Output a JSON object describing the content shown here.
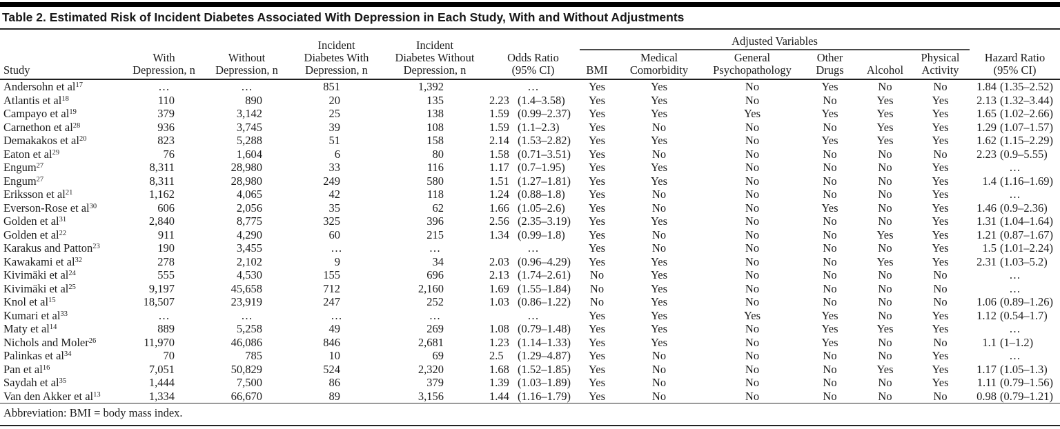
{
  "title": "Table 2. Estimated Risk of Incident Diabetes Associated With Depression in Each Study, With and Without Adjustments",
  "footnote": "Abbreviation: BMI = body mass index.",
  "table": {
    "headers": {
      "study": "Study",
      "with_depression": "With\nDepression, n",
      "without_depression": "Without\nDepression, n",
      "incident_with": "Incident\nDiabetes With\nDepression, n",
      "incident_without": "Incident\nDiabetes Without\nDepression, n",
      "odds_ratio": "Odds Ratio\n(95% CI)",
      "adjusted_variables": "Adjusted Variables",
      "adjusted_columns": [
        "BMI",
        "Medical\nComorbidity",
        "General\nPsychopathology",
        "Other\nDrugs",
        "Alcohol",
        "Physical\nActivity"
      ],
      "hazard_ratio": "Hazard Ratio\n(95% CI)"
    },
    "row_fields": [
      "study",
      "citation_ref",
      "with_depression_n",
      "without_depression_n",
      "incident_diabetes_with_n",
      "incident_diabetes_without_n",
      "odds_ratio_95ci",
      "adj_bmi",
      "adj_medical_comorbidity",
      "adj_general_psychopathology",
      "adj_other_drugs",
      "adj_alcohol",
      "adj_physical_activity",
      "hazard_ratio_95ci"
    ],
    "rows": [
      [
        "Andersohn et al",
        "17",
        "…",
        "…",
        "851",
        "1,392",
        "…",
        "Yes",
        "Yes",
        "No",
        "Yes",
        "No",
        "No",
        "1.84 (1.35–2.52)"
      ],
      [
        "Atlantis et al",
        "18",
        "110",
        "890",
        "20",
        "135",
        "2.23 (1.4–3.58)",
        "Yes",
        "Yes",
        "No",
        "No",
        "Yes",
        "Yes",
        "2.13 (1.32–3.44)"
      ],
      [
        "Campayo et al",
        "19",
        "379",
        "3,142",
        "25",
        "138",
        "1.59 (0.99–2.37)",
        "Yes",
        "Yes",
        "Yes",
        "Yes",
        "Yes",
        "Yes",
        "1.65 (1.02–2.66)"
      ],
      [
        "Carnethon et al",
        "28",
        "936",
        "3,745",
        "39",
        "108",
        "1.59 (1.1–2.3)",
        "Yes",
        "No",
        "No",
        "No",
        "Yes",
        "Yes",
        "1.29 (1.07–1.57)"
      ],
      [
        "Demakakos et al",
        "20",
        "823",
        "5,288",
        "51",
        "158",
        "2.14 (1.53–2.82)",
        "Yes",
        "Yes",
        "No",
        "Yes",
        "Yes",
        "Yes",
        "1.62 (1.15–2.29)"
      ],
      [
        "Eaton et al",
        "29",
        "76",
        "1,604",
        "6",
        "80",
        "1.58 (0.71–3.51)",
        "Yes",
        "No",
        "No",
        "No",
        "No",
        "No",
        "2.23 (0.9–5.55)"
      ],
      [
        "Engum",
        "27",
        "8,311",
        "28,980",
        "33",
        "116",
        "1.17 (0.7–1.95)",
        "Yes",
        "Yes",
        "No",
        "No",
        "No",
        "Yes",
        "…"
      ],
      [
        "Engum",
        "27",
        "8,311",
        "28,980",
        "249",
        "580",
        "1.51 (1.27–1.81)",
        "Yes",
        "Yes",
        "No",
        "No",
        "No",
        "Yes",
        "1.4 (1.16–1.69)"
      ],
      [
        "Eriksson et al",
        "21",
        "1,162",
        "4,065",
        "42",
        "118",
        "1.24 (0.88–1.8)",
        "Yes",
        "No",
        "No",
        "No",
        "No",
        "Yes",
        "…"
      ],
      [
        "Everson-Rose et al",
        "30",
        "606",
        "2,056",
        "35",
        "62",
        "1.66 (1.05–2.6)",
        "Yes",
        "No",
        "No",
        "Yes",
        "No",
        "Yes",
        "1.46 (0.9–2.36)"
      ],
      [
        "Golden et al",
        "31",
        "2,840",
        "8,775",
        "325",
        "396",
        "2.56 (2.35–3.19)",
        "Yes",
        "Yes",
        "No",
        "No",
        "No",
        "Yes",
        "1.31 (1.04–1.64)"
      ],
      [
        "Golden et al",
        "22",
        "911",
        "4,290",
        "60",
        "215",
        "1.34 (0.99–1.8)",
        "Yes",
        "No",
        "No",
        "No",
        "Yes",
        "Yes",
        "1.21 (0.87–1.67)"
      ],
      [
        "Karakus and Patton",
        "23",
        "190",
        "3,455",
        "…",
        "…",
        "…",
        "Yes",
        "No",
        "No",
        "No",
        "No",
        "Yes",
        "1.5 (1.01–2.24)"
      ],
      [
        "Kawakami et al",
        "32",
        "278",
        "2,102",
        "9",
        "34",
        "2.03 (0.96–4.29)",
        "Yes",
        "Yes",
        "No",
        "No",
        "Yes",
        "Yes",
        "2.31 (1.03–5.2)"
      ],
      [
        "Kivimäki et al",
        "24",
        "555",
        "4,530",
        "155",
        "696",
        "2.13 (1.74–2.61)",
        "No",
        "Yes",
        "No",
        "No",
        "No",
        "No",
        "…"
      ],
      [
        "Kivimäki et al",
        "25",
        "9,197",
        "45,658",
        "712",
        "2,160",
        "1.69 (1.55–1.84)",
        "No",
        "Yes",
        "No",
        "No",
        "No",
        "No",
        "…"
      ],
      [
        "Knol et al",
        "15",
        "18,507",
        "23,919",
        "247",
        "252",
        "1.03 (0.86–1.22)",
        "No",
        "Yes",
        "No",
        "No",
        "No",
        "No",
        "1.06 (0.89–1.26)"
      ],
      [
        "Kumari et al",
        "33",
        "…",
        "…",
        "…",
        "…",
        "…",
        "Yes",
        "Yes",
        "Yes",
        "Yes",
        "No",
        "Yes",
        "1.12 (0.54–1.7)"
      ],
      [
        "Maty et al",
        "14",
        "889",
        "5,258",
        "49",
        "269",
        "1.08 (0.79–1.48)",
        "Yes",
        "Yes",
        "No",
        "Yes",
        "Yes",
        "Yes",
        "…"
      ],
      [
        "Nichols and Moler",
        "26",
        "11,970",
        "46,086",
        "846",
        "2,681",
        "1.23 (1.14–1.33)",
        "Yes",
        "Yes",
        "No",
        "Yes",
        "No",
        "No",
        "1.1 (1–1.2)"
      ],
      [
        "Palinkas et al",
        "34",
        "70",
        "785",
        "10",
        "69",
        "2.5 (1.29–4.87)",
        "Yes",
        "No",
        "No",
        "No",
        "No",
        "Yes",
        "…"
      ],
      [
        "Pan et al",
        "16",
        "7,051",
        "50,829",
        "524",
        "2,320",
        "1.68 (1.52–1.85)",
        "Yes",
        "No",
        "No",
        "No",
        "Yes",
        "Yes",
        "1.17 (1.05–1.3)"
      ],
      [
        "Saydah et al",
        "35",
        "1,444",
        "7,500",
        "86",
        "379",
        "1.39 (1.03–1.89)",
        "Yes",
        "No",
        "No",
        "No",
        "No",
        "Yes",
        "1.11 (0.79–1.56)"
      ],
      [
        "Van den Akker et al",
        "13",
        "1,334",
        "66,670",
        "89",
        "3,156",
        "1.44 (1.16–1.79)",
        "Yes",
        "No",
        "No",
        "No",
        "No",
        "No",
        "0.98 (0.79–1.21)"
      ]
    ]
  }
}
